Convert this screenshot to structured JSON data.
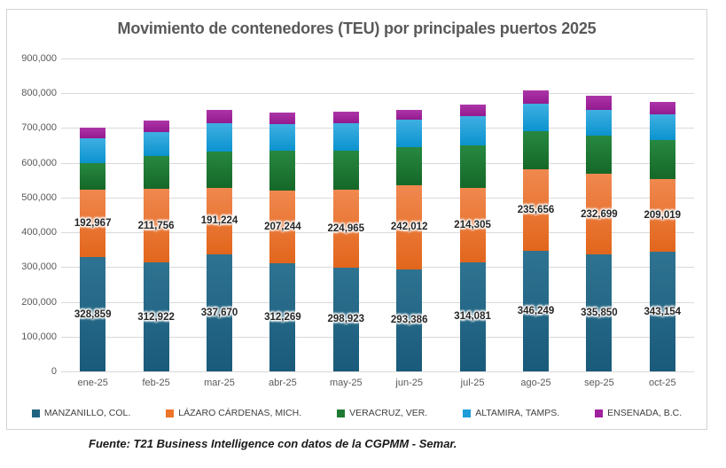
{
  "chart": {
    "title": "Movimiento de contenedores (TEU) por principales puertos 2025",
    "source": "Fuente: T21 Business Intelligence con datos de la CGPMM - Semar."
  },
  "chart_data": {
    "type": "bar",
    "stacked": true,
    "title": "Movimiento de contenedores (TEU) por principales puertos 2025",
    "xlabel": "",
    "ylabel": "",
    "ylim": [
      0,
      900000
    ],
    "ytick_step": 100000,
    "grid": true,
    "legend_position": "bottom",
    "categories": [
      "ene-25",
      "feb-25",
      "mar-25",
      "abr-25",
      "may-25",
      "jun-25",
      "jul-25",
      "ago-25",
      "sep-25",
      "oct-25"
    ],
    "series": [
      {
        "name": "MANZANILLO, COL.",
        "color": "#1f6380",
        "color_top": "#2e7391",
        "color_bottom": "#1a5a7a",
        "show_value_labels": true,
        "values": [
          328859,
          312922,
          337670,
          312269,
          298923,
          293386,
          314081,
          346249,
          335850,
          343154
        ]
      },
      {
        "name": "LÁZARO CÁRDENAS, MICH.",
        "color": "#ed7428",
        "color_top": "#f0884f",
        "color_bottom": "#e2661c",
        "show_value_labels": true,
        "values": [
          192967,
          211756,
          191224,
          207244,
          224965,
          242012,
          214305,
          235656,
          232699,
          209019
        ]
      },
      {
        "name": "VERACRUZ, VER.",
        "color": "#1e7a32",
        "color_top": "#278840",
        "color_bottom": "#156828",
        "show_value_labels": false,
        "values": [
          78000,
          95000,
          103000,
          115000,
          111000,
          110000,
          122000,
          109000,
          110000,
          113000
        ]
      },
      {
        "name": "ALTAMIRA, TAMPS.",
        "color": "#1e9dd8",
        "color_top": "#3fafe2",
        "color_bottom": "#0b93cf",
        "show_value_labels": false,
        "values": [
          70000,
          69000,
          82000,
          77000,
          79000,
          79000,
          84000,
          79000,
          74000,
          74000
        ]
      },
      {
        "name": "ENSENADA, B.C.",
        "color": "#a0219e",
        "color_top": "#ac35a8",
        "color_bottom": "#93198f",
        "show_value_labels": false,
        "values": [
          31000,
          33000,
          38000,
          33000,
          33000,
          28000,
          33000,
          38000,
          41000,
          36000
        ]
      }
    ],
    "value_label_note": "Only MANZANILLO and LÁZARO CÁRDENAS segments show printed data labels; other series values estimated from gridlines.",
    "source": "Fuente: T21 Business Intelligence con datos de la CGPMM - Semar."
  }
}
